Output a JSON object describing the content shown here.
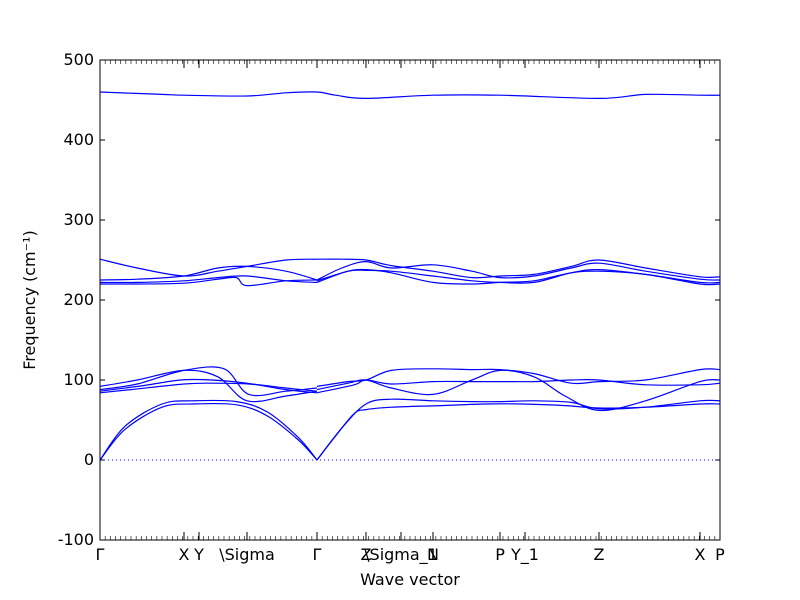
{
  "chart_data": {
    "type": "line",
    "title": "",
    "xlabel": "Wave vector",
    "ylabel": "Frequency (cm⁻¹)",
    "ylim": [
      -100,
      500
    ],
    "yticks": [
      -100,
      0,
      100,
      200,
      300,
      400,
      500
    ],
    "xlim": [
      0,
      1
    ],
    "grid": false,
    "zero_line": {
      "y": 0,
      "style": "dotted",
      "color": "#0000ff"
    },
    "line_color": "#0000ff",
    "high_symmetry_points": [
      {
        "label": "Γ",
        "x": 0.0
      },
      {
        "label": "X",
        "x": 0.1355
      },
      {
        "label": "Y",
        "x": 0.1597
      },
      {
        "label": "\\Sigma",
        "x": 0.2371
      },
      {
        "label": "Γ",
        "x": 0.35
      },
      {
        "label": "Z",
        "x": 0.429
      },
      {
        "label": "\\Sigma_1",
        "x": 0.4855
      },
      {
        "label": "N",
        "x": 0.5371
      },
      {
        "label": "P",
        "x": 0.6452
      },
      {
        "label": "Y_1",
        "x": 0.6855
      },
      {
        "label": "Z",
        "x": 0.8048
      },
      {
        "label": "X",
        "x": 0.9677
      },
      {
        "label": "P",
        "x": 1.0
      }
    ],
    "series": [
      {
        "x": [
          0,
          0.04,
          0.1,
          0.15,
          0.22,
          0.27,
          0.32,
          0.35
        ],
        "values": [
          0,
          38,
          66,
          70,
          69,
          55,
          25,
          0
        ]
      },
      {
        "x": [
          0,
          0.04,
          0.1,
          0.15,
          0.22,
          0.27,
          0.32,
          0.35
        ],
        "values": [
          0,
          42,
          70,
          74,
          73,
          60,
          28,
          0
        ]
      },
      {
        "x": [
          0,
          0.05,
          0.1355,
          0.18,
          0.24,
          0.3,
          0.35
        ],
        "values": [
          84,
          88,
          95,
          96,
          95,
          90,
          86
        ]
      },
      {
        "x": [
          0,
          0.06,
          0.1355,
          0.2,
          0.24,
          0.3,
          0.35
        ],
        "values": [
          88,
          95,
          112,
          114,
          82,
          86,
          90
        ]
      },
      {
        "x": [
          0,
          0.06,
          0.1355,
          0.19,
          0.2371,
          0.3,
          0.35
        ],
        "values": [
          92,
          100,
          112,
          104,
          74,
          80,
          86
        ]
      },
      {
        "x": [
          0,
          0.07,
          0.13,
          0.18,
          0.2371,
          0.3,
          0.35
        ],
        "values": [
          86,
          93,
          100,
          100,
          96,
          88,
          84
        ]
      },
      {
        "x": [
          0.35,
          0.38,
          0.41,
          0.429,
          0.47,
          0.55,
          0.62,
          0.68,
          0.75,
          0.8048,
          0.88,
          0.9677,
          1.0
        ],
        "values": [
          0,
          30,
          58,
          63,
          66,
          68,
          70,
          70,
          68,
          65,
          66,
          70,
          70
        ]
      },
      {
        "x": [
          0.35,
          0.39,
          0.429,
          0.47,
          0.5371,
          0.6,
          0.6452,
          0.7,
          0.76,
          0.8048,
          0.88,
          0.9677,
          1.0
        ],
        "values": [
          0,
          40,
          70,
          76,
          74,
          73,
          73,
          74,
          72,
          64,
          66,
          74,
          74
        ]
      },
      {
        "x": [
          0.35,
          0.4,
          0.429,
          0.47,
          0.5371,
          0.6,
          0.6452,
          0.7,
          0.75,
          0.8048,
          0.88,
          0.9677,
          1.0
        ],
        "values": [
          88,
          96,
          100,
          90,
          82,
          100,
          112,
          104,
          80,
          62,
          74,
          98,
          100
        ]
      },
      {
        "x": [
          0.35,
          0.4,
          0.429,
          0.47,
          0.5371,
          0.6,
          0.6452,
          0.7,
          0.76,
          0.8048,
          0.88,
          0.9677,
          1.0
        ],
        "values": [
          92,
          98,
          100,
          112,
          114,
          113,
          113,
          108,
          96,
          98,
          100,
          113,
          113
        ]
      },
      {
        "x": [
          0.35,
          0.41,
          0.429,
          0.47,
          0.5371,
          0.6,
          0.6452,
          0.7,
          0.76,
          0.8048,
          0.88,
          0.9677,
          1.0
        ],
        "values": [
          84,
          94,
          100,
          95,
          98,
          98,
          98,
          98,
          100,
          100,
          94,
          94,
          96
        ]
      },
      {
        "x": [
          0,
          0.06,
          0.1355,
          0.19,
          0.2371,
          0.3,
          0.35
        ],
        "values": [
          251,
          240,
          230,
          236,
          242,
          250,
          251
        ]
      },
      {
        "x": [
          0,
          0.06,
          0.1355,
          0.19,
          0.2371,
          0.3,
          0.35
        ],
        "values": [
          225,
          226,
          230,
          240,
          242,
          236,
          225
        ]
      },
      {
        "x": [
          0,
          0.06,
          0.1355,
          0.19,
          0.22,
          0.2371,
          0.3,
          0.35
        ],
        "values": [
          220,
          220,
          221,
          226,
          228,
          218,
          224,
          225
        ]
      },
      {
        "x": [
          0,
          0.06,
          0.1355,
          0.19,
          0.2371,
          0.3,
          0.35
        ],
        "values": [
          222,
          222,
          224,
          228,
          230,
          224,
          222
        ]
      },
      {
        "x": [
          0.35,
          0.39,
          0.429,
          0.47,
          0.5371,
          0.6,
          0.6452,
          0.7,
          0.76,
          0.8048,
          0.88,
          0.9677,
          1.0
        ],
        "values": [
          251,
          251,
          250,
          243,
          236,
          228,
          230,
          232,
          242,
          250,
          240,
          229,
          229
        ]
      },
      {
        "x": [
          0.35,
          0.39,
          0.429,
          0.47,
          0.5371,
          0.6,
          0.6452,
          0.7,
          0.76,
          0.8048,
          0.88,
          0.9677,
          1.0
        ],
        "values": [
          225,
          240,
          248,
          240,
          244,
          236,
          228,
          230,
          240,
          246,
          236,
          226,
          225
        ]
      },
      {
        "x": [
          0.35,
          0.4,
          0.429,
          0.47,
          0.5371,
          0.6,
          0.6452,
          0.7,
          0.76,
          0.8048,
          0.88,
          0.9677,
          1.0
        ],
        "values": [
          222,
          236,
          237,
          236,
          230,
          224,
          222,
          222,
          234,
          238,
          232,
          222,
          222
        ]
      },
      {
        "x": [
          0.35,
          0.4,
          0.429,
          0.47,
          0.5371,
          0.6,
          0.6452,
          0.7,
          0.76,
          0.8048,
          0.88,
          0.9677,
          1.0
        ],
        "values": [
          224,
          236,
          238,
          234,
          222,
          220,
          222,
          224,
          234,
          236,
          232,
          220,
          220
        ]
      },
      {
        "x": [
          0,
          0.1,
          0.1355,
          0.2371,
          0.3,
          0.35,
          0.38,
          0.429,
          0.5371,
          0.6452,
          0.8048,
          0.88,
          0.9677,
          1.0
        ],
        "values": [
          460,
          457,
          456,
          455,
          459,
          460,
          456,
          452,
          456,
          456,
          452,
          457,
          456,
          456
        ]
      }
    ]
  }
}
